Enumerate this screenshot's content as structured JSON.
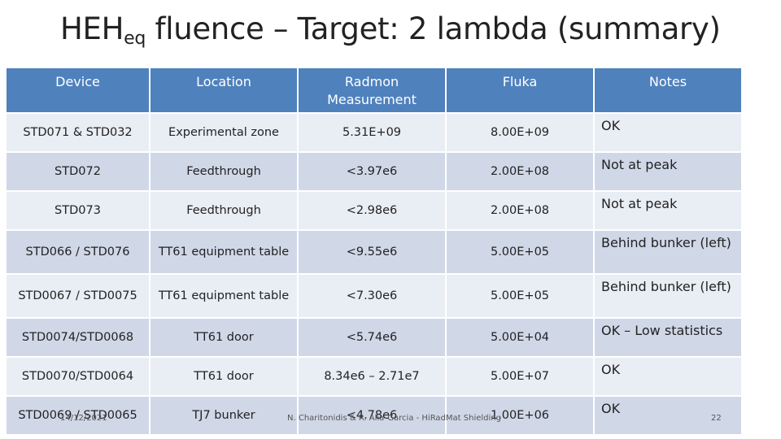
{
  "title": {
    "main": "HEH",
    "subscript": "eq",
    "rest": " fluence – Target: 2 lambda (summary)"
  },
  "table": {
    "headers": {
      "device": "Device",
      "location": "Location",
      "radmon": "Radmon Measurement",
      "fluka": "Fluka",
      "notes": "Notes"
    },
    "rows": [
      {
        "device": "STD071 & STD032",
        "location": "Experimental zone",
        "radmon": "5.31E+09",
        "fluka": "8.00E+09",
        "notes": "OK"
      },
      {
        "device": "STD072",
        "location": "Feedthrough",
        "radmon": "<3.97e6",
        "fluka": "2.00E+08",
        "notes": "Not at peak"
      },
      {
        "device": "STD073",
        "location": "Feedthrough",
        "radmon": "<2.98e6",
        "fluka": "2.00E+08",
        "notes": "Not at peak"
      },
      {
        "device": "STD066 / STD076",
        "location": "TT61 equipment table",
        "radmon": "<9.55e6",
        "fluka": "5.00E+05",
        "notes": "Behind bunker (left)"
      },
      {
        "device": "STD0067 / STD0075",
        "location": "TT61 equipment table",
        "radmon": "<7.30e6",
        "fluka": "5.00E+05",
        "notes": "Behind bunker (left)"
      },
      {
        "device": "STD0074/STD0068",
        "location": "TT61 door",
        "radmon": "<5.74e6",
        "fluka": "5.00E+04",
        "notes": "OK – Low statistics"
      },
      {
        "device": "STD0070/STD0064",
        "location": "TT61 door",
        "radmon": "8.34e6 – 2.71e7",
        "fluka": "5.00E+07",
        "notes": "OK"
      },
      {
        "device": "STD0069 / STD0065",
        "location": "TJ7 bunker",
        "radmon": "<4.78e6",
        "fluka": "1.00E+06",
        "notes": "OK"
      }
    ]
  },
  "footer": {
    "date": "14/12/2021",
    "author": "N. Charitonidis & R. Alia-Garcia - HiRadMat Shielding",
    "page": "22"
  },
  "colors": {
    "header_bg": "#4f81bd",
    "row_light": "#e9edf4",
    "row_dark": "#d0d8e8"
  }
}
